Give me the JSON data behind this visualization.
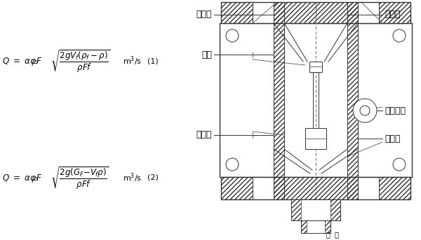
{
  "bg_color": "#ffffff",
  "line_color": "#333333",
  "labels": {
    "display": "顯示器",
    "float": "浮子",
    "guide_tube": "導向管",
    "measure_tube": "測量管",
    "servo_system": "隨動系統",
    "cone_tube": "錐形管",
    "bottom": "平  鉧"
  }
}
